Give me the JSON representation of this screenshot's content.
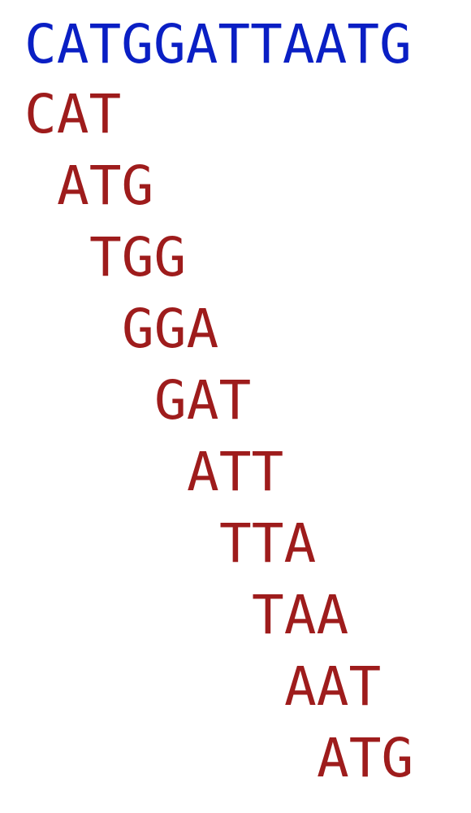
{
  "sequence": "CATGGATTAATG",
  "kmers": [
    "CAT",
    "ATG",
    "TGG",
    "GGA",
    "GAT",
    "ATT",
    "TTA",
    "TAA",
    "AAT",
    "ATG"
  ],
  "colors": {
    "sequence": "#0a1fc4",
    "kmer": "#9e1c1c"
  }
}
